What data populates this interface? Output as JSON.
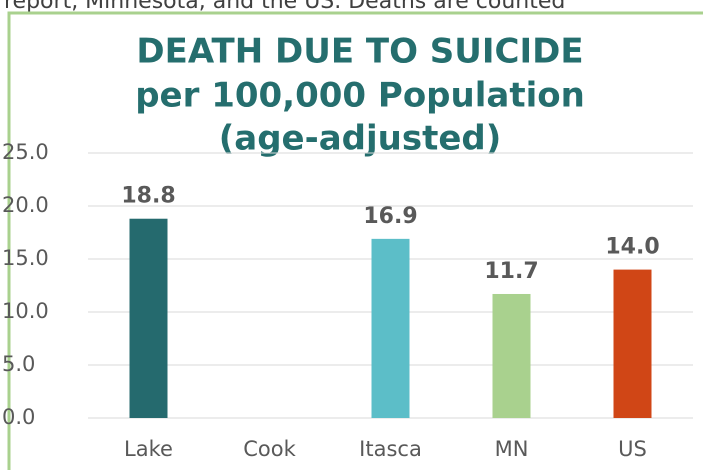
{
  "page_text": "report, Minnesota, and the US. Deaths are counted",
  "chart_data": {
    "type": "bar",
    "title": [
      "DEATH DUE TO SUICIDE",
      "per 100,000 Population",
      "(age-adjusted)"
    ],
    "categories": [
      "Lake",
      "Cook",
      "Itasca",
      "MN",
      "US"
    ],
    "values": [
      18.8,
      null,
      16.9,
      11.7,
      14.0
    ],
    "value_labels": [
      "18.8",
      null,
      "16.9",
      "11.7",
      "14.0"
    ],
    "colors": [
      "#256a6e",
      null,
      "#5cbec8",
      "#a9d18e",
      "#d04616"
    ],
    "ylim": [
      0,
      25
    ],
    "yticks": [
      {
        "value": 0,
        "label": "0.0"
      },
      {
        "value": 5,
        "label": "5.0"
      },
      {
        "value": 10,
        "label": "10.0"
      },
      {
        "value": 15,
        "label": "15.0"
      },
      {
        "value": 20,
        "label": "20.0"
      },
      {
        "value": 25,
        "label": "25.0"
      }
    ],
    "grid": true
  }
}
